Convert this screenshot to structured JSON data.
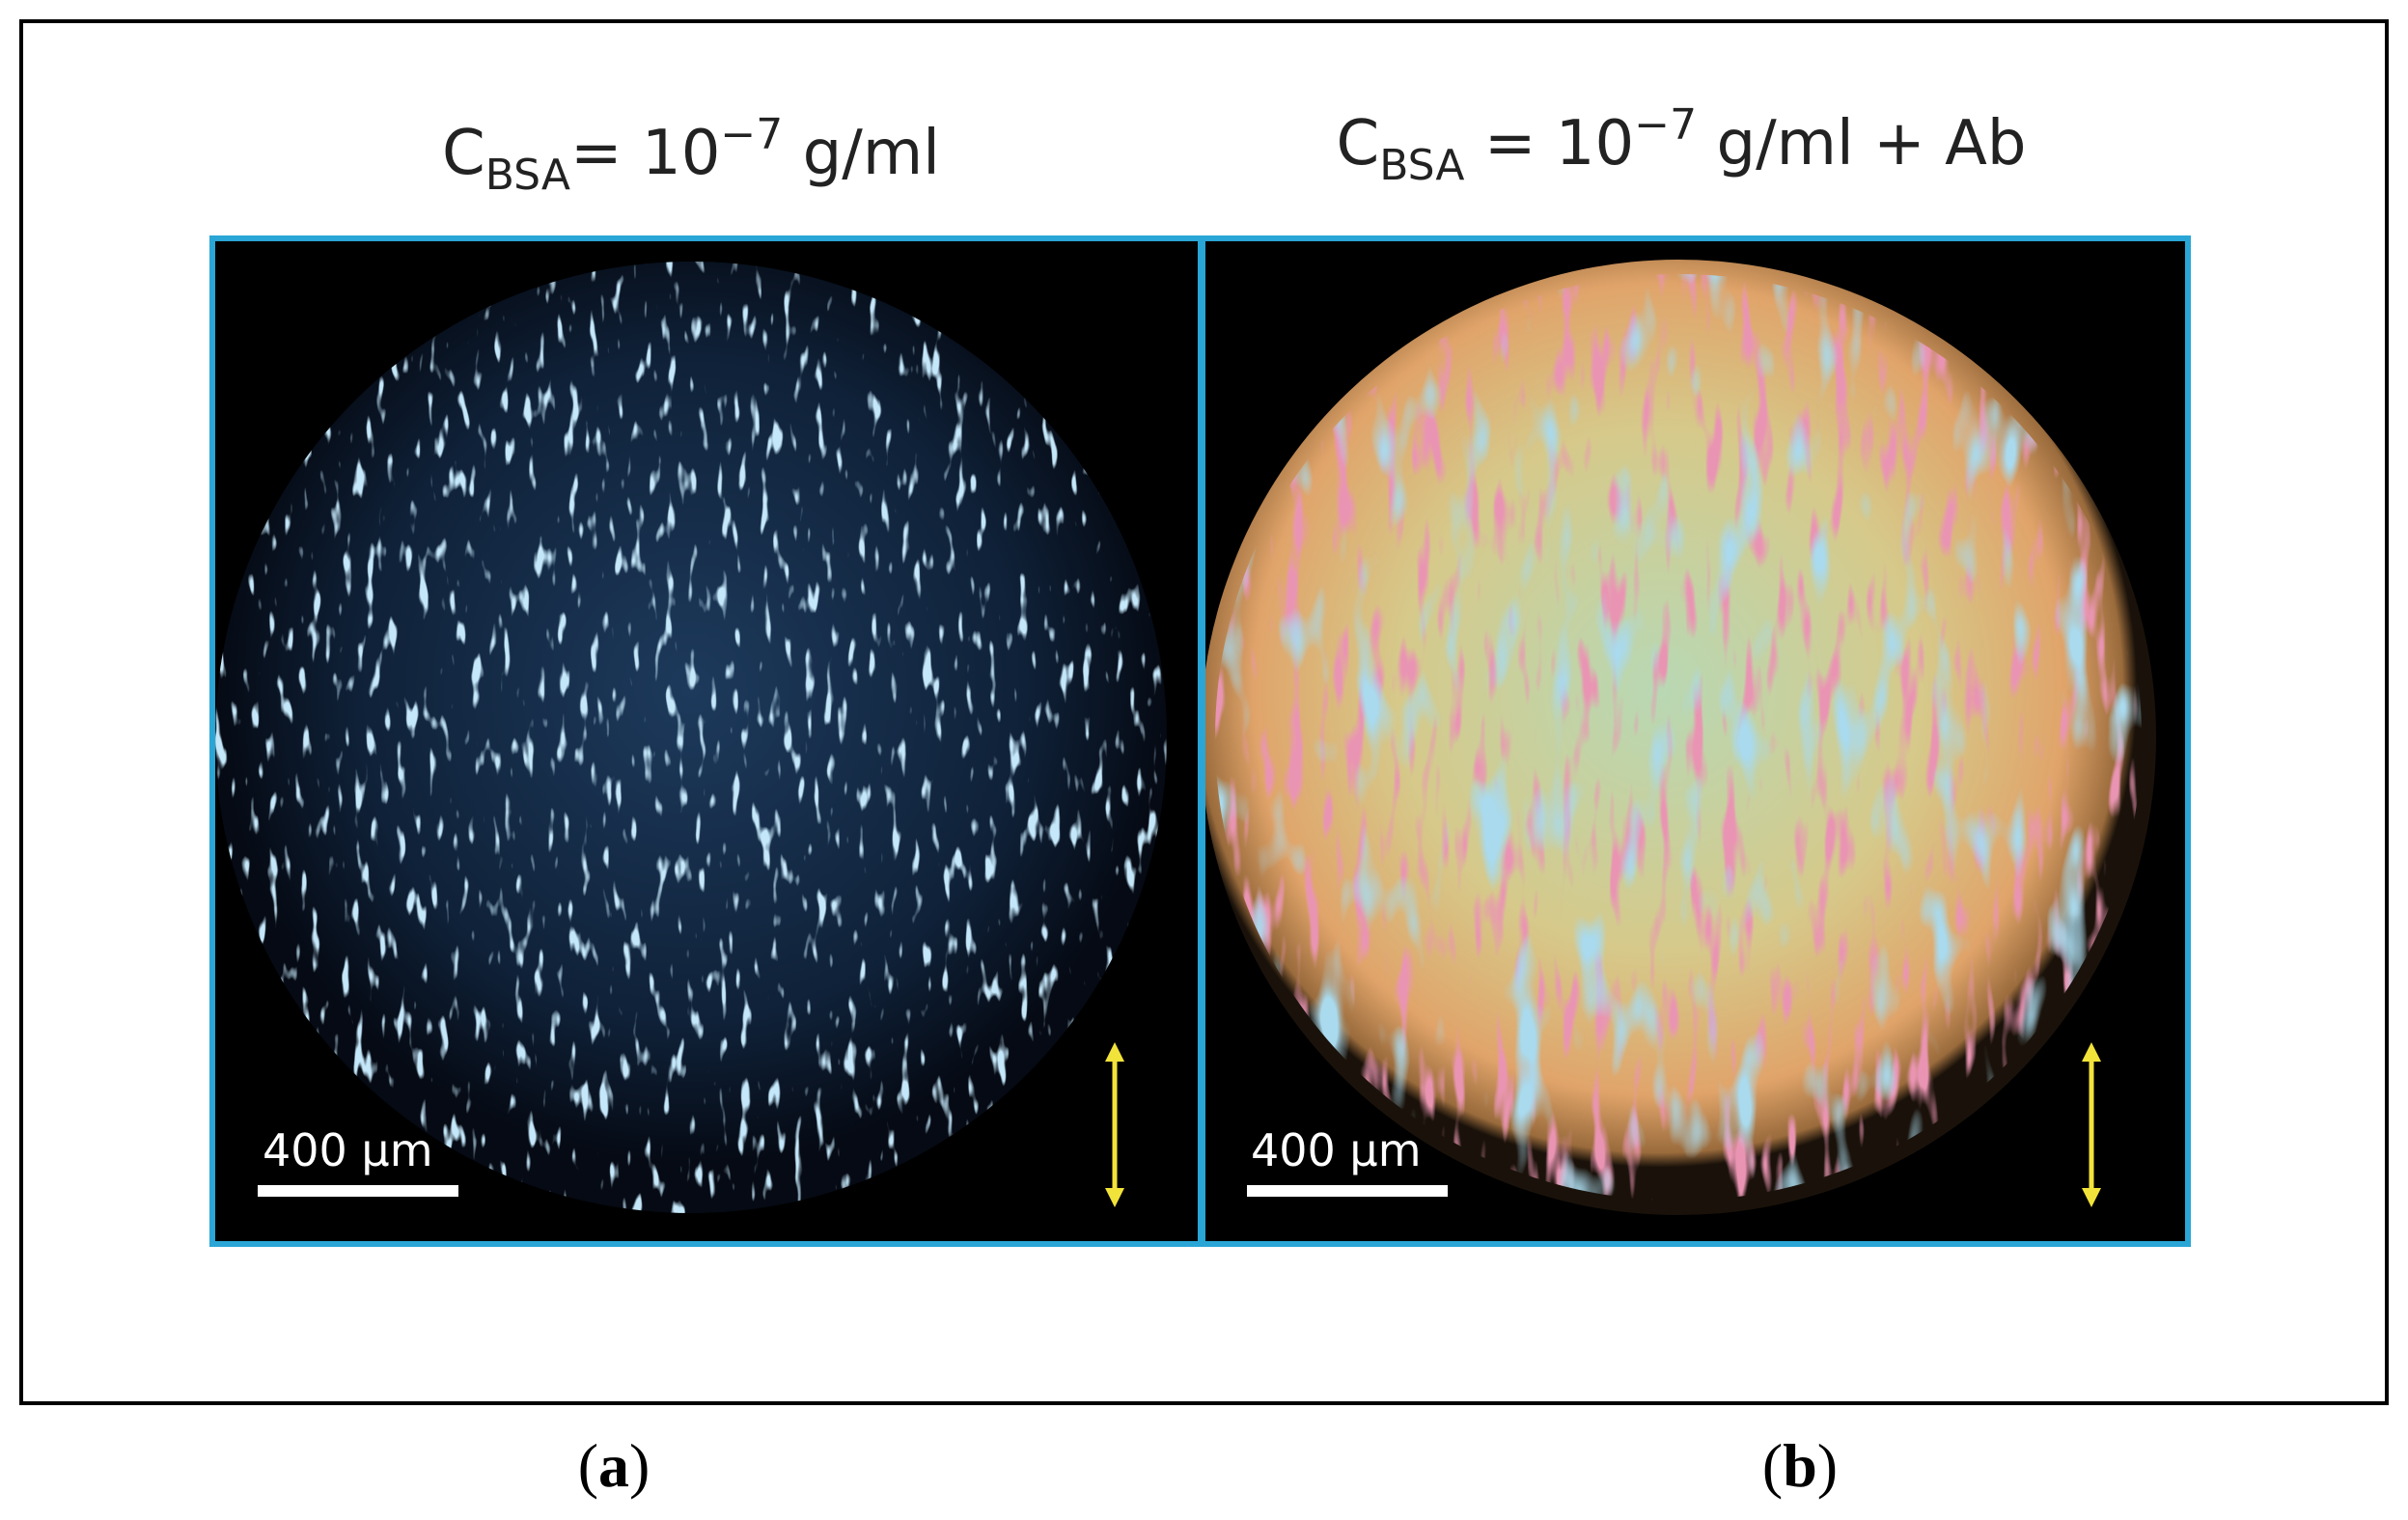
{
  "panels": [
    {
      "title": {
        "symbol": "C",
        "subscript": "BSA",
        "equals": "= 10",
        "exponent": "−7",
        "unit": " g/ml"
      },
      "scale_bar": "400 μm",
      "label": {
        "open": "(",
        "letter": "a",
        "close": ")"
      }
    },
    {
      "title": {
        "symbol": "C",
        "subscript": "BSA",
        "equals": " = 10",
        "exponent": "−7",
        "unit": " g/ml + Ab"
      },
      "scale_bar": "400 μm",
      "label": {
        "open": "(",
        "letter": "b",
        "close": ")"
      }
    }
  ]
}
